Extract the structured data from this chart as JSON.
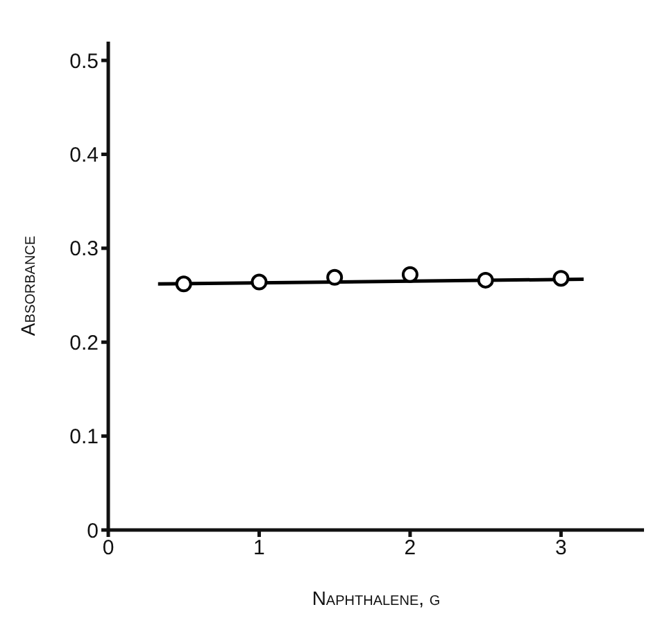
{
  "chart_data": {
    "type": "scatter",
    "xlabel": "Naphthalene, g",
    "ylabel": "Absorbance",
    "xlim": [
      0,
      3.55
    ],
    "xticks": [
      0,
      1,
      2,
      3
    ],
    "ylim": [
      0,
      0.52
    ],
    "yticks": [
      0,
      0.1,
      0.2,
      0.3,
      0.4,
      0.5
    ],
    "grid": false,
    "legend": false,
    "series": [
      {
        "marker": "circle",
        "color": "#000000",
        "x": [
          0.5,
          1,
          1.5,
          2,
          2.5,
          3
        ],
        "values": [
          0.262,
          0.264,
          0.269,
          0.272,
          0.266,
          0.268
        ]
      },
      {
        "type": "line",
        "marker": "none",
        "color": "#000000",
        "x": [
          0.33,
          3.15
        ],
        "values": [
          0.262,
          0.267
        ]
      }
    ]
  }
}
